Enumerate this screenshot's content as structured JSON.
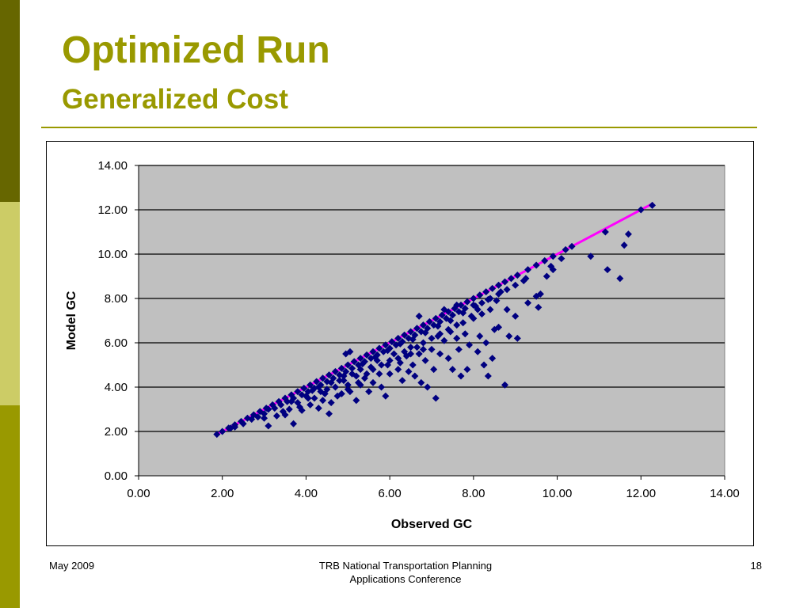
{
  "slide": {
    "title": "Optimized Run",
    "subtitle": "Generalized Cost",
    "footer_left": "May 2009",
    "footer_center_line1": "TRB National Transportation Planning",
    "footer_center_line2": "Applications Conference",
    "page_number": "18"
  },
  "colors": {
    "title": "#999900",
    "plot_background": "#c0c0c0",
    "points": "#000080",
    "reference_line": "#ff00ff",
    "sidebar": [
      "#666600",
      "#cccc66",
      "#999900"
    ]
  },
  "chart_data": {
    "type": "scatter",
    "title": "",
    "xlabel": "Observed GC",
    "ylabel": "Model GC",
    "xlim": [
      0,
      14
    ],
    "ylim": [
      0,
      14
    ],
    "x_ticks": [
      "0.00",
      "2.00",
      "4.00",
      "6.00",
      "8.00",
      "10.00",
      "12.00",
      "14.00"
    ],
    "y_ticks": [
      "0.00",
      "2.00",
      "4.00",
      "6.00",
      "8.00",
      "10.00",
      "12.00",
      "14.00"
    ],
    "grid": "horizontal",
    "legend": "none",
    "reference_line": {
      "x": [
        1.9,
        12.3
      ],
      "y": [
        1.9,
        12.3
      ]
    },
    "series": [
      {
        "marker": "diamond",
        "points": [
          [
            1.87,
            1.87
          ],
          [
            2.0,
            2.0
          ],
          [
            2.15,
            2.15
          ],
          [
            2.3,
            2.3
          ],
          [
            2.45,
            2.45
          ],
          [
            2.6,
            2.6
          ],
          [
            2.75,
            2.75
          ],
          [
            2.9,
            2.9
          ],
          [
            3.05,
            3.05
          ],
          [
            3.2,
            3.2
          ],
          [
            3.35,
            3.35
          ],
          [
            3.5,
            3.5
          ],
          [
            3.65,
            3.65
          ],
          [
            3.8,
            3.8
          ],
          [
            3.95,
            3.95
          ],
          [
            4.1,
            4.1
          ],
          [
            4.25,
            4.25
          ],
          [
            4.4,
            4.4
          ],
          [
            4.55,
            4.55
          ],
          [
            4.7,
            4.7
          ],
          [
            4.85,
            4.85
          ],
          [
            5.0,
            5.0
          ],
          [
            5.15,
            5.15
          ],
          [
            5.3,
            5.3
          ],
          [
            5.45,
            5.45
          ],
          [
            5.6,
            5.6
          ],
          [
            5.75,
            5.75
          ],
          [
            5.9,
            5.9
          ],
          [
            6.05,
            6.05
          ],
          [
            6.2,
            6.2
          ],
          [
            6.35,
            6.35
          ],
          [
            6.5,
            6.5
          ],
          [
            6.65,
            6.65
          ],
          [
            6.8,
            6.8
          ],
          [
            6.95,
            6.95
          ],
          [
            7.1,
            7.1
          ],
          [
            7.25,
            7.25
          ],
          [
            7.4,
            7.4
          ],
          [
            7.55,
            7.55
          ],
          [
            7.7,
            7.7
          ],
          [
            7.85,
            7.85
          ],
          [
            8.0,
            8.0
          ],
          [
            8.15,
            8.15
          ],
          [
            8.3,
            8.3
          ],
          [
            8.45,
            8.45
          ],
          [
            8.6,
            8.6
          ],
          [
            8.75,
            8.75
          ],
          [
            8.9,
            8.9
          ],
          [
            9.05,
            9.05
          ],
          [
            9.3,
            9.3
          ],
          [
            9.5,
            9.5
          ],
          [
            9.7,
            9.7
          ],
          [
            9.9,
            9.9
          ],
          [
            10.2,
            10.2
          ],
          [
            10.35,
            10.35
          ],
          [
            12.0,
            12.0
          ],
          [
            12.27,
            12.2
          ],
          [
            2.2,
            2.15
          ],
          [
            2.5,
            2.35
          ],
          [
            2.7,
            2.55
          ],
          [
            2.85,
            2.65
          ],
          [
            3.0,
            2.8
          ],
          [
            3.1,
            3.0
          ],
          [
            3.25,
            3.05
          ],
          [
            3.4,
            3.2
          ],
          [
            3.55,
            3.35
          ],
          [
            3.7,
            3.5
          ],
          [
            3.9,
            3.65
          ],
          [
            4.05,
            3.8
          ],
          [
            4.2,
            3.95
          ],
          [
            4.35,
            4.1
          ],
          [
            4.5,
            4.25
          ],
          [
            4.65,
            4.4
          ],
          [
            4.8,
            4.55
          ],
          [
            4.95,
            4.7
          ],
          [
            5.1,
            4.85
          ],
          [
            5.25,
            5.0
          ],
          [
            5.4,
            5.15
          ],
          [
            5.55,
            5.3
          ],
          [
            5.7,
            5.45
          ],
          [
            5.85,
            5.6
          ],
          [
            6.0,
            5.75
          ],
          [
            6.15,
            5.9
          ],
          [
            6.3,
            6.05
          ],
          [
            6.45,
            6.2
          ],
          [
            6.6,
            6.35
          ],
          [
            6.75,
            6.5
          ],
          [
            6.9,
            6.65
          ],
          [
            7.05,
            6.8
          ],
          [
            7.2,
            6.95
          ],
          [
            7.35,
            7.1
          ],
          [
            7.5,
            7.25
          ],
          [
            7.65,
            7.4
          ],
          [
            7.8,
            7.55
          ],
          [
            8.0,
            7.7
          ],
          [
            8.2,
            7.8
          ],
          [
            8.4,
            8.0
          ],
          [
            8.6,
            8.2
          ],
          [
            8.8,
            8.4
          ],
          [
            9.0,
            8.6
          ],
          [
            9.2,
            8.8
          ],
          [
            2.3,
            2.2
          ],
          [
            3.0,
            2.6
          ],
          [
            3.1,
            2.25
          ],
          [
            3.3,
            2.7
          ],
          [
            3.5,
            2.75
          ],
          [
            3.6,
            3.0
          ],
          [
            3.7,
            2.35
          ],
          [
            3.8,
            3.3
          ],
          [
            3.9,
            2.95
          ],
          [
            4.0,
            3.6
          ],
          [
            4.1,
            3.2
          ],
          [
            4.2,
            3.5
          ],
          [
            4.3,
            3.05
          ],
          [
            4.35,
            3.8
          ],
          [
            4.4,
            3.4
          ],
          [
            4.5,
            3.9
          ],
          [
            4.55,
            2.8
          ],
          [
            4.6,
            3.3
          ],
          [
            4.7,
            4.0
          ],
          [
            4.75,
            3.6
          ],
          [
            4.8,
            4.3
          ],
          [
            4.85,
            3.7
          ],
          [
            4.9,
            4.5
          ],
          [
            5.0,
            4.1
          ],
          [
            5.05,
            3.8
          ],
          [
            5.1,
            4.6
          ],
          [
            5.2,
            3.4
          ],
          [
            5.25,
            4.2
          ],
          [
            5.3,
            4.8
          ],
          [
            5.4,
            4.4
          ],
          [
            5.5,
            3.8
          ],
          [
            5.55,
            4.9
          ],
          [
            5.6,
            4.2
          ],
          [
            5.7,
            5.2
          ],
          [
            5.75,
            4.6
          ],
          [
            5.8,
            4.0
          ],
          [
            5.9,
            3.6
          ],
          [
            5.95,
            5.0
          ],
          [
            6.0,
            4.6
          ],
          [
            6.1,
            5.5
          ],
          [
            6.2,
            4.8
          ],
          [
            6.25,
            5.1
          ],
          [
            6.3,
            4.3
          ],
          [
            6.4,
            5.4
          ],
          [
            6.45,
            4.7
          ],
          [
            6.5,
            5.8
          ],
          [
            6.55,
            5.0
          ],
          [
            6.6,
            4.5
          ],
          [
            6.7,
            5.5
          ],
          [
            6.75,
            4.2
          ],
          [
            6.8,
            6.0
          ],
          [
            6.85,
            5.2
          ],
          [
            6.9,
            4.0
          ],
          [
            7.0,
            5.7
          ],
          [
            7.05,
            4.8
          ],
          [
            7.1,
            3.5
          ],
          [
            7.15,
            6.3
          ],
          [
            7.2,
            5.5
          ],
          [
            7.3,
            6.1
          ],
          [
            7.4,
            5.3
          ],
          [
            7.45,
            6.5
          ],
          [
            7.5,
            4.8
          ],
          [
            7.6,
            6.2
          ],
          [
            7.65,
            5.7
          ],
          [
            7.7,
            4.5
          ],
          [
            7.8,
            6.4
          ],
          [
            7.85,
            4.8
          ],
          [
            7.9,
            5.9
          ],
          [
            8.0,
            7.1
          ],
          [
            8.1,
            5.6
          ],
          [
            8.15,
            6.3
          ],
          [
            8.2,
            7.3
          ],
          [
            8.25,
            5.0
          ],
          [
            8.3,
            6.0
          ],
          [
            8.35,
            4.5
          ],
          [
            8.4,
            7.5
          ],
          [
            8.45,
            5.3
          ],
          [
            8.5,
            6.6
          ],
          [
            8.55,
            7.9
          ],
          [
            8.6,
            6.7
          ],
          [
            8.75,
            4.1
          ],
          [
            8.8,
            7.5
          ],
          [
            8.85,
            6.3
          ],
          [
            9.0,
            7.2
          ],
          [
            9.05,
            6.2
          ],
          [
            9.3,
            7.8
          ],
          [
            9.5,
            8.1
          ],
          [
            9.55,
            7.6
          ],
          [
            9.6,
            8.2
          ],
          [
            9.75,
            9.0
          ],
          [
            9.9,
            9.3
          ],
          [
            10.8,
            9.9
          ],
          [
            11.2,
            9.3
          ],
          [
            11.5,
            8.9
          ],
          [
            11.6,
            10.4
          ],
          [
            11.7,
            10.9
          ],
          [
            11.15,
            11.0
          ],
          [
            4.3,
            4.0
          ],
          [
            4.6,
            4.2
          ],
          [
            4.9,
            4.3
          ],
          [
            5.0,
            3.9
          ],
          [
            5.2,
            4.5
          ],
          [
            5.3,
            4.1
          ],
          [
            5.45,
            4.6
          ],
          [
            5.6,
            4.8
          ],
          [
            5.8,
            5.0
          ],
          [
            6.0,
            5.2
          ],
          [
            6.2,
            5.3
          ],
          [
            6.35,
            5.6
          ],
          [
            6.5,
            5.5
          ],
          [
            6.65,
            5.8
          ],
          [
            6.8,
            5.7
          ],
          [
            7.0,
            6.2
          ],
          [
            7.2,
            6.4
          ],
          [
            7.4,
            6.6
          ],
          [
            7.6,
            6.8
          ],
          [
            7.75,
            6.9
          ],
          [
            7.95,
            7.2
          ],
          [
            8.1,
            7.5
          ],
          [
            4.05,
            3.5
          ],
          [
            3.85,
            3.1
          ],
          [
            3.45,
            2.9
          ],
          [
            3.65,
            3.35
          ],
          [
            4.45,
            3.7
          ],
          [
            4.15,
            3.85
          ],
          [
            5.35,
            5.05
          ],
          [
            5.65,
            5.35
          ],
          [
            5.95,
            5.65
          ],
          [
            6.25,
            5.95
          ],
          [
            6.55,
            6.15
          ],
          [
            6.85,
            6.45
          ],
          [
            7.15,
            6.75
          ],
          [
            7.45,
            7.0
          ],
          [
            7.75,
            7.35
          ],
          [
            8.05,
            7.65
          ],
          [
            8.35,
            7.95
          ],
          [
            8.65,
            8.3
          ],
          [
            9.25,
            8.9
          ],
          [
            9.85,
            9.45
          ],
          [
            10.1,
            9.8
          ],
          [
            4.95,
            5.5
          ],
          [
            5.05,
            5.6
          ],
          [
            6.7,
            7.2
          ],
          [
            7.3,
            7.5
          ],
          [
            7.6,
            7.7
          ]
        ]
      }
    ]
  }
}
